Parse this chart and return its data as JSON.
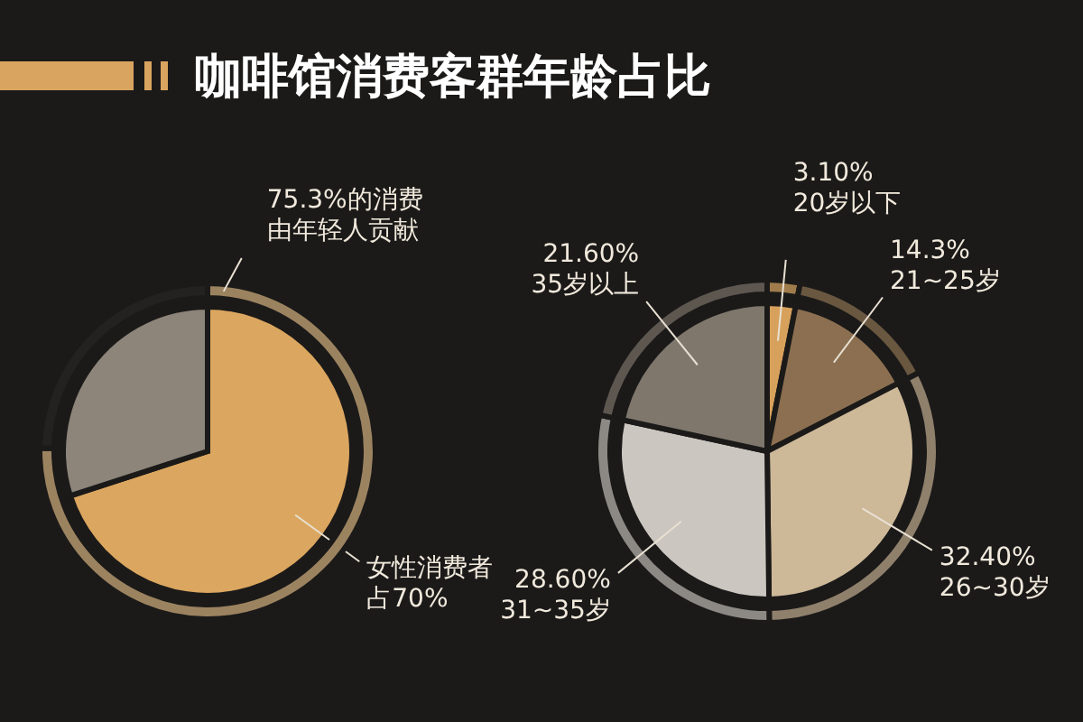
{
  "chart_data": [
    {
      "type": "pie",
      "title": "咖啡馆消费客群年龄占比",
      "categories": [
        "女性消费者占70%",
        null
      ],
      "series": [
        {
          "values": [
            70,
            30
          ],
          "colors": [
            "#dba65f",
            "#8d857a"
          ]
        },
        {
          "type": "donut",
          "name": "75.3%的消费由年轻人贡献",
          "values": [
            75.3,
            24.7
          ],
          "colors": [
            "#9c8360",
            "#242220"
          ]
        }
      ]
    },
    {
      "type": "pie",
      "categories": [
        "20岁以下",
        "21~25岁",
        "26~30岁",
        "31~35岁",
        "35岁以上"
      ],
      "series": [
        {
          "type": "donut",
          "values": [
            3.1,
            14.3,
            32.4,
            28.6,
            21.6
          ],
          "colors": [
            "#a07c4c",
            "#6a5740",
            "#8f806c",
            "#8c8985",
            "#5d5750"
          ]
        },
        {
          "values": [
            3.1,
            14.3,
            32.4,
            28.6,
            21.6
          ],
          "value_labels": [
            "3.10%",
            "14.3%",
            "32.40%",
            "28.60%",
            "21.60%"
          ],
          "colors": [
            "#d7a15c",
            "#8b6f50",
            "#cdb898",
            "#cbc6c0",
            "#7f776c"
          ]
        }
      ]
    }
  ]
}
